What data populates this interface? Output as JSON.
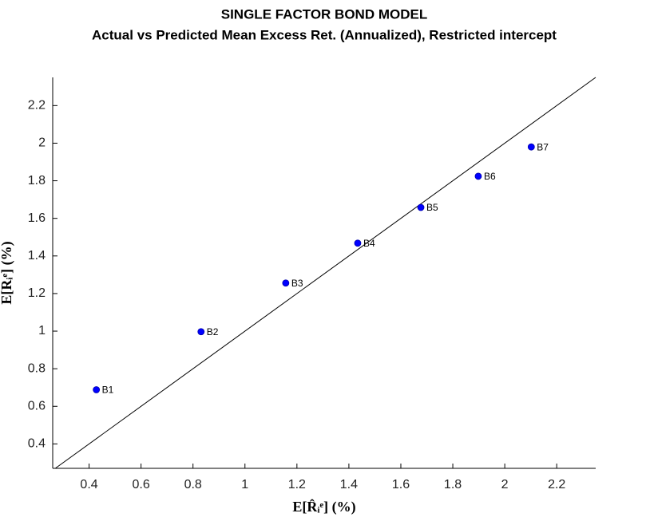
{
  "chart_data": {
    "type": "scatter",
    "title": "SINGLE FACTOR BOND MODEL",
    "subtitle": "Actual vs Predicted Mean Excess Ret. (Annualized), Restricted intercept",
    "xlabel": "E[R̂ᵢᵉ] (%)",
    "ylabel": "E[Rᵢᵉ] (%)",
    "labels": [
      "B1",
      "B2",
      "B3",
      "B4",
      "B5",
      "B6",
      "B7"
    ],
    "x": [
      0.428,
      0.831,
      1.157,
      1.434,
      1.677,
      1.898,
      2.102
    ],
    "values": [
      0.688,
      0.997,
      1.256,
      1.468,
      1.658,
      1.824,
      1.98
    ],
    "color": "#0000ff",
    "xlim": [
      0.26,
      2.35
    ],
    "ylim": [
      0.27,
      2.35
    ],
    "xticks": [
      0.4,
      0.6,
      0.8,
      1,
      1.2,
      1.4,
      1.6,
      1.8,
      2,
      2.2
    ],
    "yticks": [
      0.4,
      0.6,
      0.8,
      1,
      1.2,
      1.4,
      1.6,
      1.8,
      2,
      2.2
    ],
    "identity_line": true,
    "grid": false
  }
}
